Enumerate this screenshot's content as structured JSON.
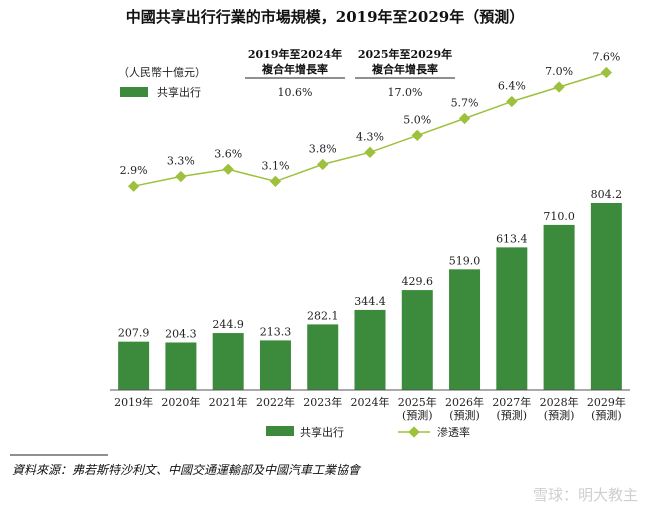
{
  "title": "中國共享出行行業的市場規模，2019年至2029年（預測）",
  "unit_label": "（人民幣十億元）",
  "cagr": {
    "headers": [
      {
        "line1": "2019年至2024年",
        "line2": "複合年增長率",
        "value": "10.6%"
      },
      {
        "line1": "2025年至2029年",
        "line2": "複合年增長率",
        "value": "17.0%"
      }
    ],
    "row_label": "共享出行"
  },
  "legend": {
    "bar": "共享出行",
    "line": "滲透率"
  },
  "source": "資料來源：弗若斯特沙利文、中國交通運輸部及中國汽車工業協會",
  "watermark": "雪球：明大教主",
  "colors": {
    "bar": "#3c8a3c",
    "line": "#9dc13c",
    "marker": "#9dc13c",
    "axis": "#555555"
  },
  "chart_data": {
    "type": "bar",
    "categories": [
      "2019年",
      "2020年",
      "2021年",
      "2022年",
      "2023年",
      "2024年",
      "2025年",
      "2026年",
      "2027年",
      "2028年",
      "2029年"
    ],
    "forecast_label": "(預測)",
    "forecast_from_index": 6,
    "series": [
      {
        "name": "共享出行",
        "type": "bar",
        "values": [
          207.9,
          204.3,
          244.9,
          213.3,
          282.1,
          344.4,
          429.6,
          519.0,
          613.4,
          710.0,
          804.2
        ],
        "labels": [
          "207.9",
          "204.3",
          "244.9",
          "213.3",
          "282.1",
          "344.4",
          "429.6",
          "519.0",
          "613.4",
          "710.0",
          "804.2"
        ]
      },
      {
        "name": "滲透率",
        "type": "line",
        "values": [
          2.9,
          3.3,
          3.6,
          3.1,
          3.8,
          4.3,
          5.0,
          5.7,
          6.4,
          7.0,
          7.6
        ],
        "labels": [
          "2.9%",
          "3.3%",
          "3.6%",
          "3.1%",
          "3.8%",
          "4.3%",
          "5.0%",
          "5.7%",
          "6.4%",
          "7.0%",
          "7.6%"
        ]
      }
    ]
  }
}
